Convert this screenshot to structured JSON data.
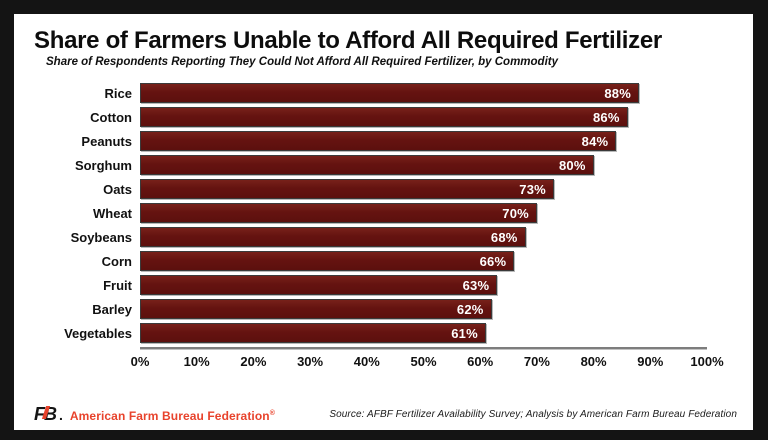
{
  "header": {
    "title": "Share of Farmers Unable to Afford All Required Fertilizer",
    "subtitle": "Share of Respondents Reporting They Could Not Afford All Required Fertilizer, by Commodity"
  },
  "chart_data": {
    "type": "bar",
    "orientation": "horizontal",
    "title": "Share of Farmers Unable to Afford All Required Fertilizer",
    "subtitle": "Share of Respondents Reporting They Could Not Afford All Required Fertilizer, by Commodity",
    "categories": [
      "Rice",
      "Cotton",
      "Peanuts",
      "Sorghum",
      "Oats",
      "Wheat",
      "Soybeans",
      "Corn",
      "Fruit",
      "Barley",
      "Vegetables"
    ],
    "values": [
      88,
      86,
      84,
      80,
      73,
      70,
      68,
      66,
      63,
      62,
      61
    ],
    "value_labels": [
      "88%",
      "86%",
      "84%",
      "80%",
      "73%",
      "70%",
      "68%",
      "66%",
      "63%",
      "62%",
      "61%"
    ],
    "xlabel": "",
    "ylabel": "",
    "xlim": [
      0,
      100
    ],
    "x_ticks": [
      "0%",
      "10%",
      "20%",
      "30%",
      "40%",
      "50%",
      "60%",
      "70%",
      "80%",
      "90%",
      "100%"
    ],
    "grid": false,
    "legend_position": "none",
    "bar_color": "#651310"
  },
  "footer": {
    "logo_text": "FB",
    "logo_dot": ".",
    "org_name": "American Farm Bureau Federation",
    "trademark": "®",
    "source": "Source: AFBF Fertilizer Availability Survey; Analysis by American Farm Bureau Federation"
  },
  "colors": {
    "bar": "#651310",
    "accent_red": "#e8432c",
    "frame": "#141414",
    "card": "#ffffff"
  }
}
